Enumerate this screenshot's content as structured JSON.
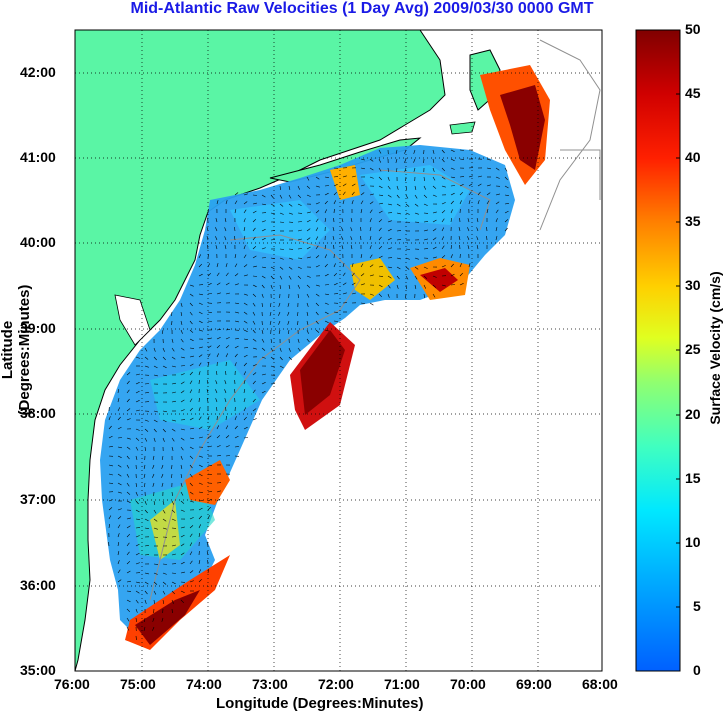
{
  "title": "Mid-Atlantic Raw Velocities (1 Day Avg) 2009/03/30 0000 GMT",
  "xlabel": "Longitude (Degrees:Minutes)",
  "ylabel": "Latitude (Degrees:Minutes)",
  "xticks": [
    "76:00",
    "75:00",
    "74:00",
    "73:00",
    "72:00",
    "71:00",
    "70:00",
    "69:00",
    "68:00"
  ],
  "yticks": [
    "42:00",
    "41:00",
    "40:00",
    "39:00",
    "38:00",
    "37:00",
    "36:00",
    "35:00"
  ],
  "colorbar": {
    "label": "Surface Velocity (cm/s)",
    "ticks": [
      "50",
      "45",
      "40",
      "35",
      "30",
      "25",
      "20",
      "15",
      "10",
      "5",
      "0"
    ]
  },
  "colors": {
    "land": "#5af5a5",
    "title": "#1a1ae6"
  }
}
